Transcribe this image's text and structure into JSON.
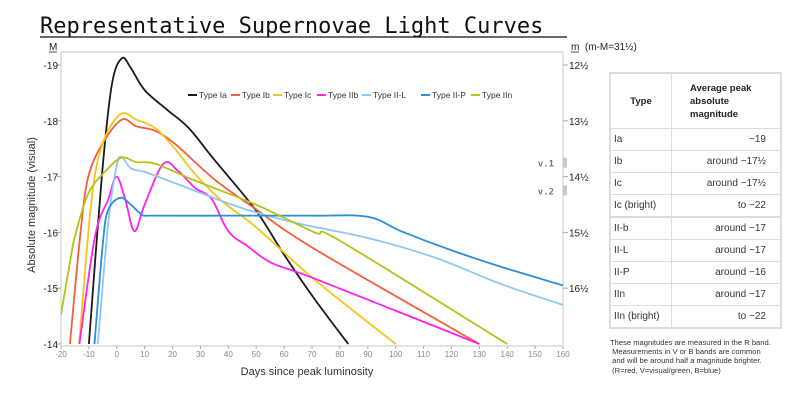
{
  "chart_data": {
    "type": "line",
    "title": "Representative Supernovae Light Curves",
    "xlabel": "Days since peak luminosity",
    "ylabel": "Absolute magnitude (visual)",
    "left_axis_symbol": "M",
    "right_axis_label": "m  (m-M=31½)",
    "xlim": [
      -20,
      160
    ],
    "ylim": [
      -14,
      -19.2
    ],
    "x_ticks": [
      -20,
      -10,
      0,
      10,
      20,
      30,
      40,
      50,
      60,
      70,
      80,
      90,
      100,
      110,
      120,
      130,
      140,
      150,
      160
    ],
    "y_ticks": [
      {
        "value": -19,
        "label": "-19",
        "right_label": "12½"
      },
      {
        "value": -18,
        "label": "-18",
        "right_label": "13½"
      },
      {
        "value": -17,
        "label": "-17",
        "right_label": "14½"
      },
      {
        "value": -16,
        "label": "-16",
        "right_label": "15½"
      },
      {
        "value": -15,
        "label": "-15",
        "right_label": "16½"
      },
      {
        "value": -14,
        "label": "-14",
        "right_label": ""
      }
    ],
    "grid": true,
    "legend_position": "top-right",
    "markers": [
      {
        "label": "v.1",
        "value": -17.25
      },
      {
        "label": "v.2",
        "value": -16.75
      }
    ],
    "series": [
      {
        "name": "Type Ia",
        "color": "#1a1a1a",
        "points": [
          [
            -10,
            -14
          ],
          [
            -5.4,
            -16.98
          ],
          [
            -1.8,
            -18.64
          ],
          [
            1.8,
            -19.12
          ],
          [
            5,
            -18.95
          ],
          [
            10,
            -18.55
          ],
          [
            18,
            -18.2
          ],
          [
            25.8,
            -17.87
          ],
          [
            35,
            -17.3
          ],
          [
            49.8,
            -16.4
          ],
          [
            60,
            -15.6
          ],
          [
            71,
            -14.8
          ],
          [
            83,
            -14
          ]
        ]
      },
      {
        "name": "Type Ib",
        "color": "#f4603a",
        "points": [
          [
            -16.8,
            -14
          ],
          [
            -13,
            -16
          ],
          [
            -10.2,
            -17.0
          ],
          [
            -5,
            -17.6
          ],
          [
            1.8,
            -18.02
          ],
          [
            7,
            -17.9
          ],
          [
            13.8,
            -17.82
          ],
          [
            21,
            -17.58
          ],
          [
            35,
            -16.95
          ],
          [
            49.8,
            -16.42
          ],
          [
            71,
            -15.7
          ],
          [
            130,
            -14
          ]
        ]
      },
      {
        "name": "Type Ic",
        "color": "#f5c518",
        "points": [
          [
            -13.5,
            -14
          ],
          [
            -9,
            -16.6
          ],
          [
            -5,
            -17.6
          ],
          [
            1.3,
            -18.12
          ],
          [
            7,
            -18.02
          ],
          [
            13.8,
            -17.87
          ],
          [
            20,
            -17.55
          ],
          [
            28,
            -17.05
          ],
          [
            38,
            -16.55
          ],
          [
            49.8,
            -16.1
          ],
          [
            71,
            -15.15
          ],
          [
            100,
            -14
          ]
        ]
      },
      {
        "name": "Type IIb",
        "color": "#ff22ee",
        "points": [
          [
            -13.4,
            -14
          ],
          [
            -7.8,
            -15.93
          ],
          [
            -3,
            -16.6
          ],
          [
            -0.1,
            -17.0
          ],
          [
            3,
            -16.6
          ],
          [
            6.3,
            -16.02
          ],
          [
            10,
            -16.5
          ],
          [
            16.7,
            -17.23
          ],
          [
            22,
            -17.1
          ],
          [
            28,
            -16.8
          ],
          [
            34,
            -16.6
          ],
          [
            40,
            -16.02
          ],
          [
            47,
            -15.75
          ],
          [
            55.6,
            -15.45
          ],
          [
            71,
            -15.17
          ],
          [
            130,
            -14
          ]
        ]
      },
      {
        "name": "Type II-L",
        "color": "#8ec8f2",
        "points": [
          [
            -6.8,
            -14
          ],
          [
            -3,
            -16.2
          ],
          [
            0,
            -17.2
          ],
          [
            1.8,
            -17.35
          ],
          [
            5,
            -17.15
          ],
          [
            10.2,
            -17.08
          ],
          [
            20,
            -16.9
          ],
          [
            29.4,
            -16.72
          ],
          [
            40,
            -16.52
          ],
          [
            49.8,
            -16.36
          ],
          [
            66,
            -16.15
          ],
          [
            90,
            -15.9
          ],
          [
            114,
            -15.55
          ],
          [
            138,
            -15.07
          ],
          [
            160,
            -14.7
          ]
        ]
      },
      {
        "name": "Type II-P",
        "color": "#2a8fd6",
        "points": [
          [
            -8,
            -14
          ],
          [
            -5,
            -15.8
          ],
          [
            -3.1,
            -16.4
          ],
          [
            1.2,
            -16.62
          ],
          [
            5,
            -16.5
          ],
          [
            9,
            -16.32
          ],
          [
            13,
            -16.3
          ],
          [
            40,
            -16.3
          ],
          [
            70,
            -16.3
          ],
          [
            90,
            -16.28
          ],
          [
            102,
            -16.02
          ],
          [
            120,
            -15.68
          ],
          [
            138,
            -15.38
          ],
          [
            160,
            -15.05
          ]
        ]
      },
      {
        "name": "Type IIn",
        "color": "#b5c21a",
        "points": [
          [
            -20,
            -14.53
          ],
          [
            -17,
            -15.4
          ],
          [
            -15,
            -15.93
          ],
          [
            -10.2,
            -16.7
          ],
          [
            -4,
            -17.1
          ],
          [
            1.8,
            -17.34
          ],
          [
            7,
            -17.26
          ],
          [
            13.8,
            -17.23
          ],
          [
            28,
            -16.93
          ],
          [
            49.8,
            -16.5
          ],
          [
            71,
            -16.0
          ],
          [
            80,
            -15.85
          ],
          [
            140,
            -14
          ]
        ]
      }
    ]
  },
  "table": {
    "headers": [
      "Type",
      "Average peak",
      "absolute",
      "magnitude"
    ],
    "rows": [
      {
        "type": "Ia",
        "value": "−19"
      },
      {
        "type": "Ib",
        "value": "around −17½"
      },
      {
        "type": "Ic",
        "value": "around −17½"
      },
      {
        "type": "Ic (bright)",
        "value": "to −22"
      },
      {
        "type": "II-b",
        "value": "around −17"
      },
      {
        "type": "II-L",
        "value": "around −17"
      },
      {
        "type": "II-P",
        "value": "around −16"
      },
      {
        "type": "IIn",
        "value": "around −17"
      },
      {
        "type": "IIn (bright)",
        "value": "to −22"
      }
    ]
  },
  "notes": [
    "These magnitudes are measured in the R band.",
    " Measurements in V or B bands are common",
    " and will be around half a magnitude brighter.",
    " (R=red, V=visual/green, B=blue)"
  ]
}
